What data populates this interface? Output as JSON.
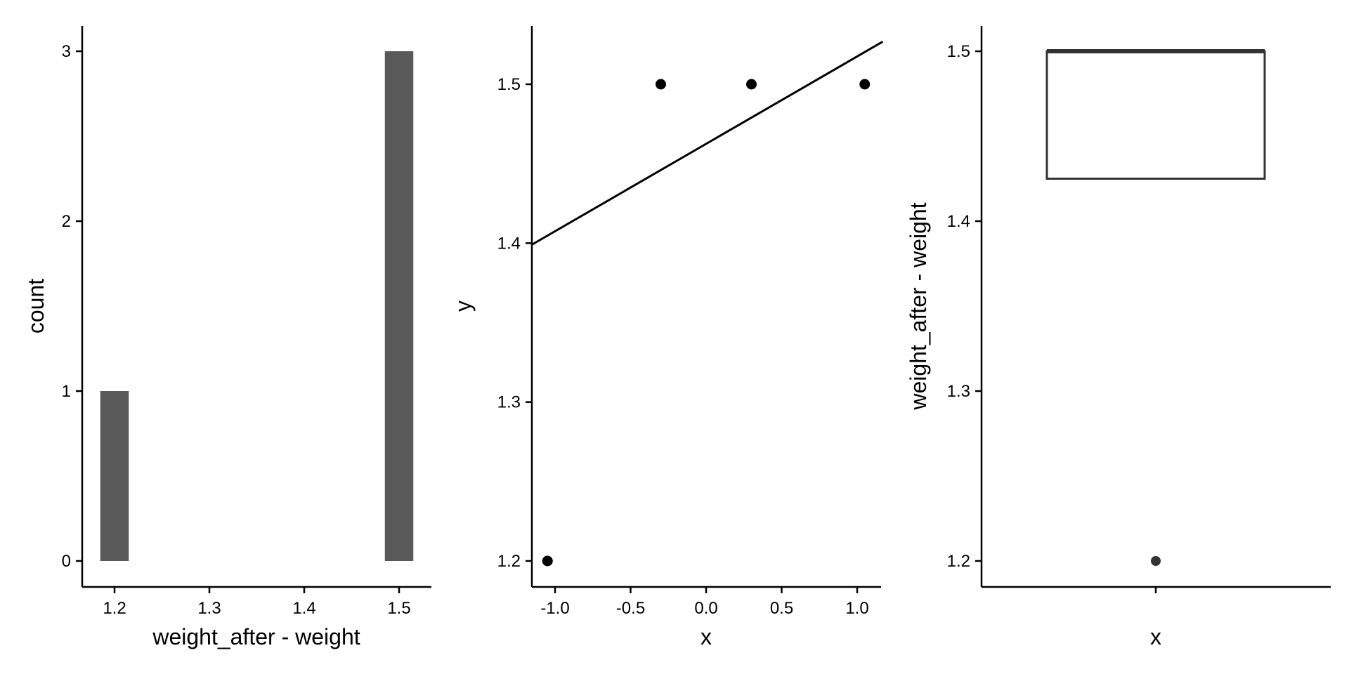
{
  "chart_data": [
    {
      "type": "bar",
      "subtype": "histogram",
      "xlabel": "weight_after - weight",
      "ylabel": "count",
      "x_ticks": [
        "1.2",
        "1.3",
        "1.4",
        "1.5"
      ],
      "y_ticks": [
        "0",
        "1",
        "2",
        "3"
      ],
      "xlim": [
        1.17,
        1.53
      ],
      "ylim": [
        0,
        3
      ],
      "bins": [
        {
          "center": 1.2,
          "width": 0.03,
          "count": 1
        },
        {
          "center": 1.5,
          "width": 0.03,
          "count": 3
        }
      ],
      "fill_color": "#595959",
      "grid": false
    },
    {
      "type": "scatter",
      "subtype": "qq-plot",
      "xlabel": "x",
      "ylabel": "y",
      "x_ticks": [
        "-1.0",
        "-0.5",
        "0.0",
        "0.5",
        "1.0"
      ],
      "y_ticks": [
        "1.2",
        "1.3",
        "1.4",
        "1.5"
      ],
      "xlim": [
        -1.15,
        1.15
      ],
      "ylim": [
        1.185,
        1.54
      ],
      "points": [
        {
          "x": -1.05,
          "y": 1.2
        },
        {
          "x": -0.3,
          "y": 1.5
        },
        {
          "x": 0.3,
          "y": 1.5
        },
        {
          "x": 1.05,
          "y": 1.5
        }
      ],
      "reference_line": {
        "intercept": 1.4625,
        "slope": 0.055
      },
      "grid": false
    },
    {
      "type": "box",
      "xlabel": "x",
      "ylabel": "weight_after - weight",
      "x_ticks": [
        ""
      ],
      "y_ticks": [
        "1.2",
        "1.3",
        "1.4",
        "1.5"
      ],
      "ylim": [
        1.185,
        1.515
      ],
      "box": {
        "q1": 1.425,
        "median": 1.5,
        "q3": 1.5,
        "whisker_low": 1.425,
        "whisker_high": 1.5
      },
      "outliers": [
        1.2
      ],
      "grid": false
    }
  ]
}
